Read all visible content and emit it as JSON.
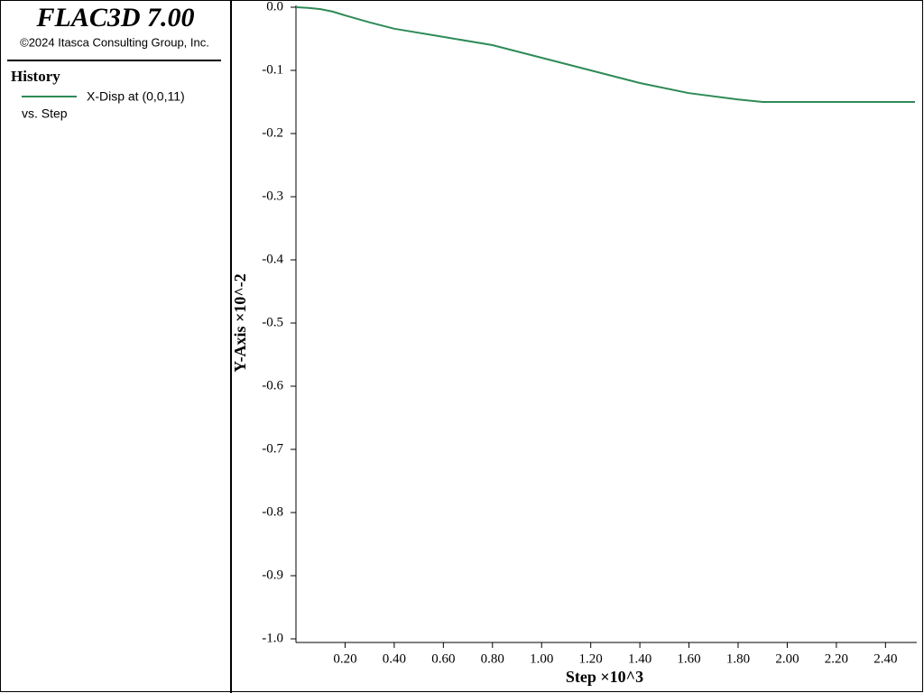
{
  "panel": {
    "title": "FLAC3D 7.00",
    "copyright": "©2024 Itasca Consulting Group, Inc.",
    "section": "History"
  },
  "chart_data": {
    "type": "line",
    "x": [
      0,
      0.05,
      0.1,
      0.15,
      0.2,
      0.3,
      0.4,
      0.6,
      0.8,
      1.0,
      1.2,
      1.4,
      1.6,
      1.8,
      1.9,
      2.52
    ],
    "series": [
      {
        "name": "X-Disp at (0,0,11)",
        "color": "#2e8b57",
        "values": [
          0,
          -0.001,
          -0.003,
          -0.007,
          -0.013,
          -0.024,
          -0.034,
          -0.047,
          -0.06,
          -0.08,
          -0.1,
          -0.12,
          -0.136,
          -0.146,
          -0.15,
          -0.15
        ]
      }
    ],
    "legend_note": "vs. Step",
    "xlabel": "Step ×10^3",
    "ylabel": "Y-Axis ×10^-2",
    "xlim": [
      0,
      2.52
    ],
    "ylim": [
      -1,
      0
    ],
    "xticks": [
      {
        "value": 0.2,
        "label": "0.20"
      },
      {
        "value": 0.4,
        "label": "0.40"
      },
      {
        "value": 0.6,
        "label": "0.60"
      },
      {
        "value": 0.8,
        "label": "0.80"
      },
      {
        "value": 1.0,
        "label": "1.00"
      },
      {
        "value": 1.2,
        "label": "1.20"
      },
      {
        "value": 1.4,
        "label": "1.40"
      },
      {
        "value": 1.6,
        "label": "1.60"
      },
      {
        "value": 1.8,
        "label": "1.80"
      },
      {
        "value": 2.0,
        "label": "2.00"
      },
      {
        "value": 2.2,
        "label": "2.20"
      },
      {
        "value": 2.4,
        "label": "2.40"
      }
    ],
    "yticks": [
      {
        "value": 0,
        "label": "0.0"
      },
      -0.1,
      -0.2,
      -0.3,
      -0.4,
      -0.5,
      -0.6,
      -0.7,
      -0.8,
      -0.9,
      {
        "value": -1,
        "label": "-1.0"
      }
    ]
  }
}
